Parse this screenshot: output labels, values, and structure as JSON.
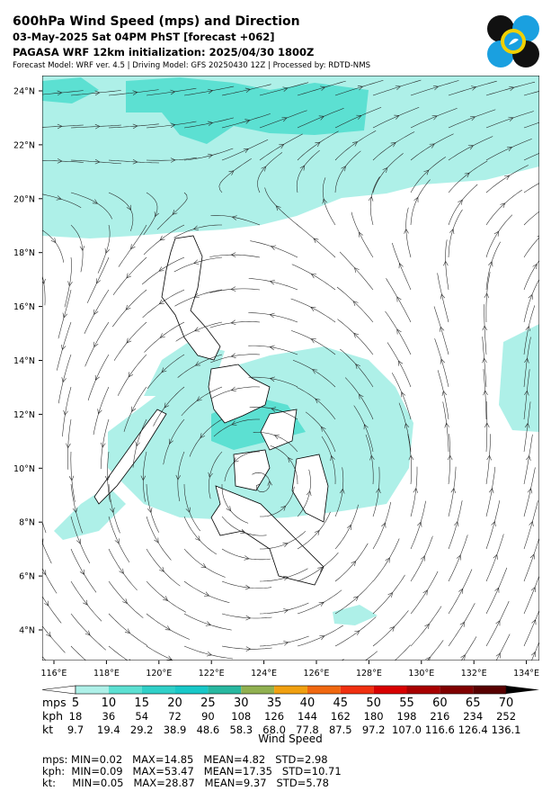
{
  "header": {
    "title": "600hPa Wind Speed (mps) and Direction",
    "subtitle": "03-May-2025 Sat 04PM PhST [forecast +062]",
    "init": "PAGASA WRF 12km initialization: 2025/04/30 1800Z",
    "info": "Forecast Model: WRF ver. 4.5 | Driving Model: GFS 20250430 12Z | Processed by: RDTD-NMS"
  },
  "map": {
    "lon_labels": [
      "116°E",
      "118°E",
      "120°E",
      "122°E",
      "124°E",
      "126°E",
      "128°E",
      "130°E",
      "132°E",
      "134°E"
    ],
    "lat_labels": [
      "24°N",
      "22°N",
      "20°N",
      "18°N",
      "16°N",
      "14°N",
      "12°N",
      "10°N",
      "8°N",
      "6°N",
      "4°N"
    ]
  },
  "colorbar": {
    "label": "Wind Speed",
    "row_names": [
      "mps",
      "kph",
      "kt"
    ],
    "mps": [
      "5",
      "10",
      "15",
      "20",
      "25",
      "30",
      "35",
      "40",
      "45",
      "50",
      "55",
      "60",
      "65",
      "70"
    ],
    "kph": [
      "18",
      "36",
      "54",
      "72",
      "90",
      "108",
      "126",
      "144",
      "162",
      "180",
      "198",
      "216",
      "234",
      "252"
    ],
    "kt": [
      "9.7",
      "19.4",
      "29.2",
      "38.9",
      "48.6",
      "58.3",
      "68.0",
      "77.8",
      "87.5",
      "97.2",
      "107.0",
      "116.6",
      "126.4",
      "136.1"
    ],
    "colors": [
      "#ffffff",
      "#aef0e8",
      "#5ce0d2",
      "#30d0c8",
      "#18c8c8",
      "#28b8a0",
      "#90b050",
      "#f0a010",
      "#f06810",
      "#f03010",
      "#d80000",
      "#a80000",
      "#800000",
      "#580000",
      "#300000",
      "#000000"
    ]
  },
  "stats": [
    "mps: MIN=0.02   MAX=14.85   MEAN=4.82   STD=2.98",
    "kph:  MIN=0.09   MAX=53.47   MEAN=17.35   STD=10.71",
    "kt:     MIN=0.05   MAX=28.87   MEAN=9.37   STD=5.78"
  ]
}
